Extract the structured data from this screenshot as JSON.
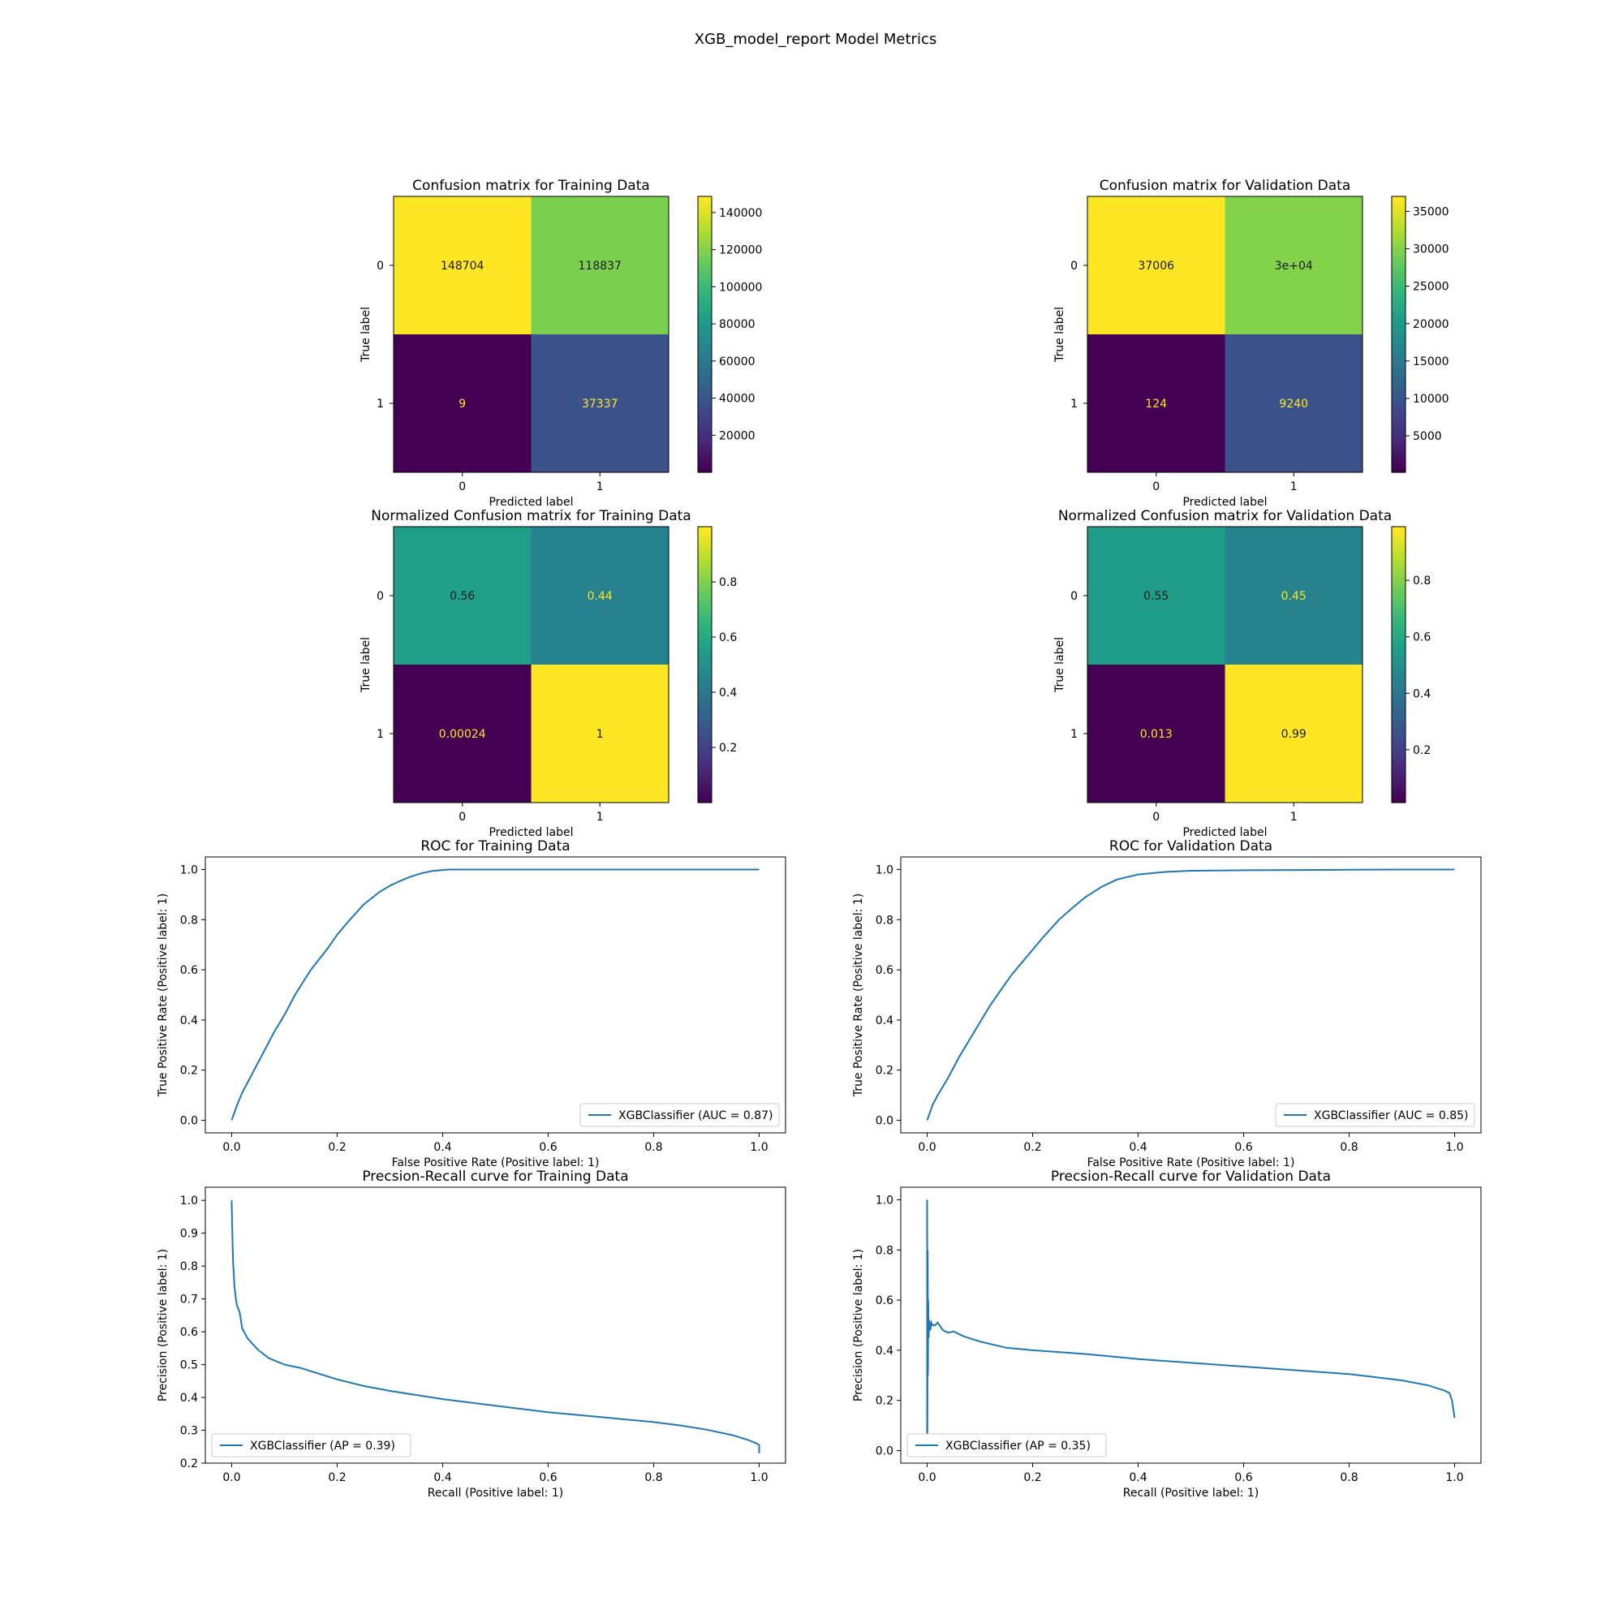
{
  "figure": {
    "suptitle": "XGB_model_report Model Metrics"
  },
  "chart_data": [
    {
      "id": "cm_train",
      "type": "heatmap",
      "title": "Confusion matrix for Training Data",
      "xlabel": "Predicted label",
      "ylabel": "True label",
      "x_categories": [
        "0",
        "1"
      ],
      "y_categories": [
        "0",
        "1"
      ],
      "values": [
        [
          148704,
          118837
        ],
        [
          9,
          37337
        ]
      ],
      "cell_labels": [
        [
          "148704",
          "118837"
        ],
        [
          "9",
          "37337"
        ]
      ],
      "colormap": "viridis",
      "vmin": 9,
      "vmax": 148704,
      "colorbar_ticks": [
        20000,
        40000,
        60000,
        80000,
        100000,
        120000,
        140000
      ]
    },
    {
      "id": "cm_val",
      "type": "heatmap",
      "title": "Confusion matrix for Validation Data",
      "xlabel": "Predicted label",
      "ylabel": "True label",
      "x_categories": [
        "0",
        "1"
      ],
      "y_categories": [
        "0",
        "1"
      ],
      "values": [
        [
          37006,
          30000
        ],
        [
          124,
          9240
        ]
      ],
      "cell_labels": [
        [
          "37006",
          "3e+04"
        ],
        [
          "124",
          "9240"
        ]
      ],
      "colormap": "viridis",
      "vmin": 124,
      "vmax": 37006,
      "colorbar_ticks": [
        5000,
        10000,
        15000,
        20000,
        25000,
        30000,
        35000
      ]
    },
    {
      "id": "ncm_train",
      "type": "heatmap",
      "title": "Normalized Confusion matrix for Training Data",
      "xlabel": "Predicted label",
      "ylabel": "True label",
      "x_categories": [
        "0",
        "1"
      ],
      "y_categories": [
        "0",
        "1"
      ],
      "values": [
        [
          0.56,
          0.44
        ],
        [
          0.00024,
          1
        ]
      ],
      "cell_labels": [
        [
          "0.56",
          "0.44"
        ],
        [
          "0.00024",
          "1"
        ]
      ],
      "colormap": "viridis",
      "vmin": 0.00024,
      "vmax": 1,
      "colorbar_ticks": [
        0.2,
        0.4,
        0.6,
        0.8
      ]
    },
    {
      "id": "ncm_val",
      "type": "heatmap",
      "title": "Normalized Confusion matrix for Validation Data",
      "xlabel": "Predicted label",
      "ylabel": "True label",
      "x_categories": [
        "0",
        "1"
      ],
      "y_categories": [
        "0",
        "1"
      ],
      "values": [
        [
          0.55,
          0.45
        ],
        [
          0.013,
          0.99
        ]
      ],
      "cell_labels": [
        [
          "0.55",
          "0.45"
        ],
        [
          "0.013",
          "0.99"
        ]
      ],
      "colormap": "viridis",
      "vmin": 0.013,
      "vmax": 0.99,
      "colorbar_ticks": [
        0.2,
        0.4,
        0.6,
        0.8
      ]
    },
    {
      "id": "roc_train",
      "type": "line",
      "title": "ROC for Training Data",
      "xlabel": "False Positive Rate (Positive label: 1)",
      "ylabel": "True Positive Rate (Positive label: 1)",
      "xlim": [
        -0.05,
        1.05
      ],
      "ylim": [
        -0.05,
        1.05
      ],
      "xticks": [
        0.0,
        0.2,
        0.4,
        0.6,
        0.8,
        1.0
      ],
      "yticks": [
        0.0,
        0.2,
        0.4,
        0.6,
        0.8,
        1.0
      ],
      "legend_position": "lower right",
      "color": "#1f77b4",
      "series": [
        {
          "name": "XGBClassifier (AUC = 0.87)",
          "x": [
            0,
            0.005,
            0.01,
            0.02,
            0.04,
            0.06,
            0.08,
            0.1,
            0.12,
            0.15,
            0.18,
            0.2,
            0.22,
            0.25,
            0.28,
            0.3,
            0.32,
            0.34,
            0.36,
            0.38,
            0.4,
            0.41,
            0.42,
            0.45,
            0.5,
            0.6,
            0.7,
            0.8,
            0.9,
            1.0
          ],
          "y": [
            0,
            0.03,
            0.06,
            0.11,
            0.19,
            0.27,
            0.35,
            0.42,
            0.5,
            0.6,
            0.68,
            0.74,
            0.79,
            0.86,
            0.91,
            0.935,
            0.955,
            0.972,
            0.985,
            0.994,
            0.998,
            1.0,
            1.0,
            1.0,
            1.0,
            1.0,
            1.0,
            1.0,
            1.0,
            1.0
          ]
        }
      ]
    },
    {
      "id": "roc_val",
      "type": "line",
      "title": "ROC for Validation Data",
      "xlabel": "False Positive Rate (Positive label: 1)",
      "ylabel": "True Positive Rate (Positive label: 1)",
      "xlim": [
        -0.05,
        1.05
      ],
      "ylim": [
        -0.05,
        1.05
      ],
      "xticks": [
        0.0,
        0.2,
        0.4,
        0.6,
        0.8,
        1.0
      ],
      "yticks": [
        0.0,
        0.2,
        0.4,
        0.6,
        0.8,
        1.0
      ],
      "legend_position": "lower right",
      "color": "#1f77b4",
      "series": [
        {
          "name": "XGBClassifier (AUC = 0.85)",
          "x": [
            0,
            0.005,
            0.01,
            0.02,
            0.04,
            0.06,
            0.08,
            0.1,
            0.12,
            0.14,
            0.16,
            0.18,
            0.2,
            0.22,
            0.25,
            0.28,
            0.3,
            0.33,
            0.36,
            0.4,
            0.45,
            0.5,
            0.6,
            0.7,
            0.8,
            0.9,
            1.0
          ],
          "y": [
            0,
            0.03,
            0.06,
            0.1,
            0.17,
            0.25,
            0.32,
            0.39,
            0.46,
            0.52,
            0.58,
            0.63,
            0.68,
            0.73,
            0.8,
            0.855,
            0.89,
            0.93,
            0.96,
            0.98,
            0.99,
            0.995,
            0.997,
            0.998,
            0.999,
            1.0,
            1.0
          ]
        }
      ]
    },
    {
      "id": "pr_train",
      "type": "line",
      "title": "Precsion-Recall curve for Training Data",
      "xlabel": "Recall (Positive label: 1)",
      "ylabel": "Precision (Positive label: 1)",
      "xlim": [
        -0.05,
        1.05
      ],
      "ylim": [
        0.2,
        1.04
      ],
      "xticks": [
        0.0,
        0.2,
        0.4,
        0.6,
        0.8,
        1.0
      ],
      "yticks": [
        0.2,
        0.3,
        0.4,
        0.5,
        0.6,
        0.7,
        0.8,
        0.9,
        1.0
      ],
      "legend_position": "lower left",
      "color": "#1f77b4",
      "series": [
        {
          "name": "XGBClassifier (AP = 0.39)",
          "x": [
            0,
            0.001,
            0.002,
            0.003,
            0.004,
            0.005,
            0.008,
            0.01,
            0.015,
            0.02,
            0.03,
            0.05,
            0.07,
            0.1,
            0.13,
            0.15,
            0.2,
            0.25,
            0.3,
            0.4,
            0.5,
            0.6,
            0.7,
            0.8,
            0.85,
            0.9,
            0.95,
            0.98,
            0.995,
            1.0,
            1.0
          ],
          "y": [
            1.0,
            0.92,
            0.85,
            0.8,
            0.78,
            0.74,
            0.7,
            0.68,
            0.66,
            0.61,
            0.58,
            0.545,
            0.52,
            0.5,
            0.49,
            0.48,
            0.455,
            0.435,
            0.42,
            0.395,
            0.375,
            0.355,
            0.34,
            0.325,
            0.315,
            0.302,
            0.285,
            0.27,
            0.26,
            0.255,
            0.23
          ]
        }
      ]
    },
    {
      "id": "pr_val",
      "type": "line",
      "title": "Precsion-Recall curve for Validation Data",
      "xlabel": "Recall (Positive label: 1)",
      "ylabel": "Precision (Positive label: 1)",
      "xlim": [
        -0.05,
        1.05
      ],
      "ylim": [
        -0.05,
        1.05
      ],
      "xticks": [
        0.0,
        0.2,
        0.4,
        0.6,
        0.8,
        1.0
      ],
      "yticks": [
        0.0,
        0.2,
        0.4,
        0.6,
        0.8,
        1.0
      ],
      "legend_position": "lower left",
      "color": "#1f77b4",
      "series": [
        {
          "name": "XGBClassifier (AP = 0.35)",
          "x": [
            0,
            0,
            0.0005,
            0.001,
            0.0015,
            0.002,
            0.003,
            0.004,
            0.006,
            0.008,
            0.01,
            0.015,
            0.02,
            0.03,
            0.04,
            0.05,
            0.07,
            0.1,
            0.15,
            0.2,
            0.3,
            0.4,
            0.5,
            0.6,
            0.7,
            0.8,
            0.9,
            0.95,
            0.98,
            0.99,
            0.995,
            1.0
          ],
          "y": [
            0.0,
            1.0,
            0.05,
            0.8,
            0.3,
            0.6,
            0.45,
            0.52,
            0.48,
            0.51,
            0.5,
            0.5,
            0.51,
            0.48,
            0.47,
            0.475,
            0.455,
            0.435,
            0.41,
            0.4,
            0.385,
            0.365,
            0.35,
            0.335,
            0.32,
            0.305,
            0.28,
            0.26,
            0.24,
            0.23,
            0.2,
            0.13
          ]
        }
      ]
    }
  ]
}
